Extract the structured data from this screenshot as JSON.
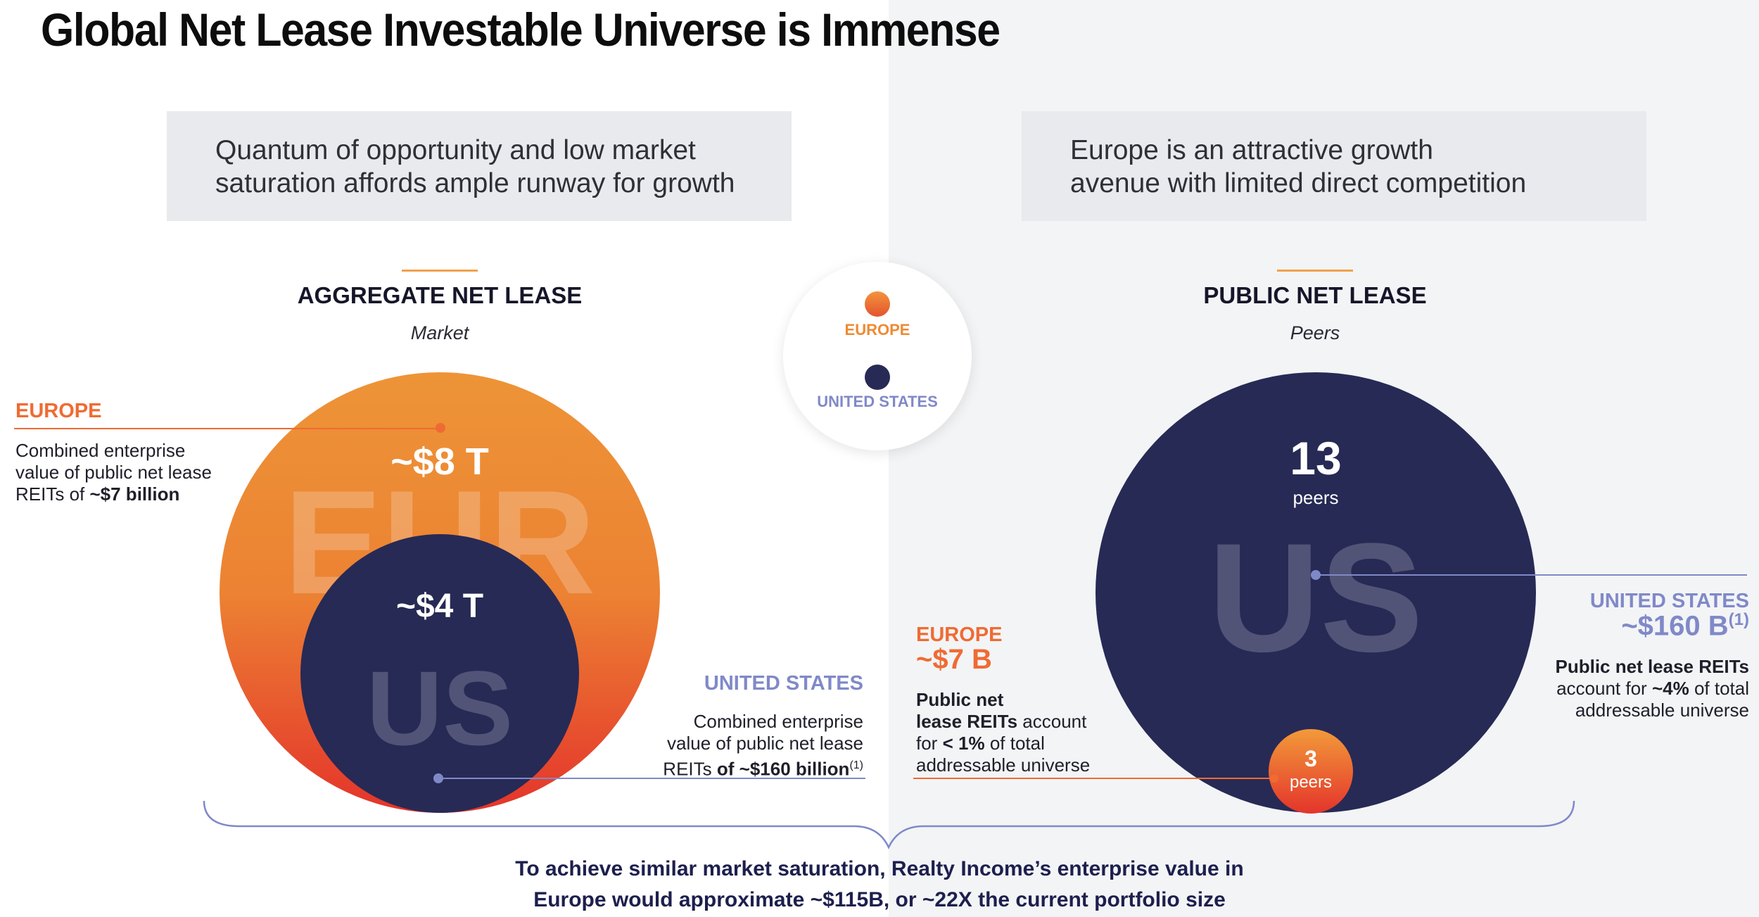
{
  "title": "Global Net Lease Investable Universe is Immense",
  "callouts": {
    "left": [
      "Quantum of opportunity and low market",
      "saturation affords ample runway for growth"
    ],
    "right": [
      "Europe is an attractive growth",
      "avenue with limited direct competition"
    ]
  },
  "legend": {
    "europe": "EUROPE",
    "us": "UNITED STATES"
  },
  "aggregate": {
    "heading": "AGGREGATE NET LEASE",
    "subheading": "Market",
    "europe_value": "~$8 T",
    "us_value": "~$4 T",
    "europe_watermark": "EUR",
    "us_watermark": "US",
    "europe_label": "EUROPE",
    "europe_desc": [
      "Combined enterprise",
      "value of public net lease"
    ],
    "europe_desc_prefix": "REITs of",
    "europe_desc_bold": "~$7 billion",
    "us_label": "UNITED STATES",
    "us_desc": [
      "Combined enterprise",
      "value of public net lease"
    ],
    "us_desc_prefix": "REITs",
    "us_desc_bold": "of ~$160 billion",
    "us_desc_note": "(1)"
  },
  "public": {
    "heading": "PUBLIC NET LEASE",
    "subheading": "Peers",
    "us_count": "13",
    "us_count_unit": "peers",
    "us_watermark": "US",
    "europe_count": "3",
    "europe_count_unit": "peers",
    "europe_label": "EUROPE",
    "europe_value": "~$7 B",
    "europe_desc_bold1": "Public net",
    "europe_desc_bold2": "lease REITs",
    "europe_desc_rest2": "account",
    "europe_desc_prefix3": "for",
    "europe_desc_bold3": "< 1%",
    "europe_desc_rest3": "of total",
    "europe_desc_line4": "addressable universe",
    "us_label": "UNITED STATES",
    "us_value": "~$160 B",
    "us_value_note": "(1)",
    "us_desc_bold1": "Public net lease REITs",
    "us_desc_prefix2": "account for",
    "us_desc_bold2": "~4%",
    "us_desc_rest2": "of total",
    "us_desc_line3": "addressable universe"
  },
  "footer": [
    "To achieve similar market saturation, Realty Income’s enterprise value in",
    "Europe would approximate ~$115B, or ~22X the current portfolio size"
  ],
  "colors": {
    "navy": "#272a55",
    "orange": "#ec8a37",
    "red": "#e4342b",
    "europe_text": "#ef6b33",
    "us_text": "#8089c8"
  }
}
